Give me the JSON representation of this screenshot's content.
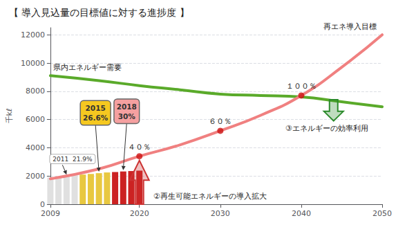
{
  "chart_data": {
    "type": "bar",
    "title": "【 導入見込量の目標値に対する進捗度 】",
    "y_label": "千kℓ",
    "xlim": [
      2009,
      2050
    ],
    "xticks": [
      2009,
      2020,
      2030,
      2040,
      2050
    ],
    "ylim": [
      0,
      12500
    ],
    "yticks": [
      0,
      2000,
      4000,
      6000,
      8000,
      10000,
      12000
    ],
    "grid": true,
    "series": [
      {
        "type": "bar",
        "x": [
          2009,
          2010,
          2011,
          2012,
          2013,
          2014,
          2015,
          2016,
          2017,
          2018,
          2019,
          2020
        ],
        "values": [
          1900,
          1950,
          2000,
          2050,
          2100,
          2150,
          2200,
          2250,
          2280,
          2320,
          2350,
          2380
        ],
        "colors": [
          "#e0e0e0",
          "#e0e0e0",
          "#e0e0e0",
          "#e0e0e0",
          "#e8c840",
          "#e8c840",
          "#e8c840",
          "#e8c840",
          "#cc2222",
          "#cc2222",
          "#cc2222",
          "#cc2222"
        ]
      },
      {
        "type": "line",
        "x": [
          2009,
          2015,
          2020,
          2025,
          2030,
          2035,
          2040,
          2045,
          2050
        ],
        "values": [
          9100,
          8750,
          8400,
          8100,
          7800,
          7700,
          7600,
          7250,
          6900
        ],
        "color": "#5aaa2a"
      },
      {
        "type": "line",
        "x": [
          2009,
          2015,
          2020,
          2025,
          2030,
          2035,
          2040,
          2045,
          2050
        ],
        "values": [
          1800,
          2500,
          3400,
          4200,
          5200,
          6300,
          7700,
          9700,
          12000
        ],
        "color": "#f08080"
      },
      {
        "type": "scatter",
        "x": [
          2020,
          2030,
          2040
        ],
        "values": [
          3400,
          5200,
          7700
        ],
        "color": "#cc1111"
      }
    ],
    "point_labels": [
      {
        "text": "４０％",
        "x": 2020,
        "y": 3400
      },
      {
        "text": "６０％",
        "x": 2030,
        "y": 5200
      },
      {
        "text": "１００％",
        "x": 2040,
        "y": 7700
      }
    ],
    "line_labels": [
      {
        "text": "県内エネルギー需要",
        "x": 2009,
        "y": 9100
      },
      {
        "text": "再エネ導入目標",
        "x": 2050,
        "y": 12000
      }
    ],
    "callouts": [
      {
        "lines": [
          "2011  21.9%"
        ],
        "x": 2011,
        "y": 2000
      },
      {
        "lines": [
          "2015",
          "26.6%"
        ],
        "x": 2015,
        "y": 2200,
        "color": "#f5c820"
      },
      {
        "lines": [
          "2018",
          "30%"
        ],
        "x": 2018,
        "y": 2320,
        "color": "#f5a0a0"
      }
    ],
    "arrows": [
      {
        "x": 2020,
        "from": 0,
        "to": 3100,
        "color": "#cc3333",
        "text": "②再生可能エネルギーの導入拡大"
      },
      {
        "x": 2044,
        "from": 7400,
        "to": 5900,
        "color": "#2a8a2a",
        "text": "③エネルギーの効率利用"
      }
    ]
  }
}
